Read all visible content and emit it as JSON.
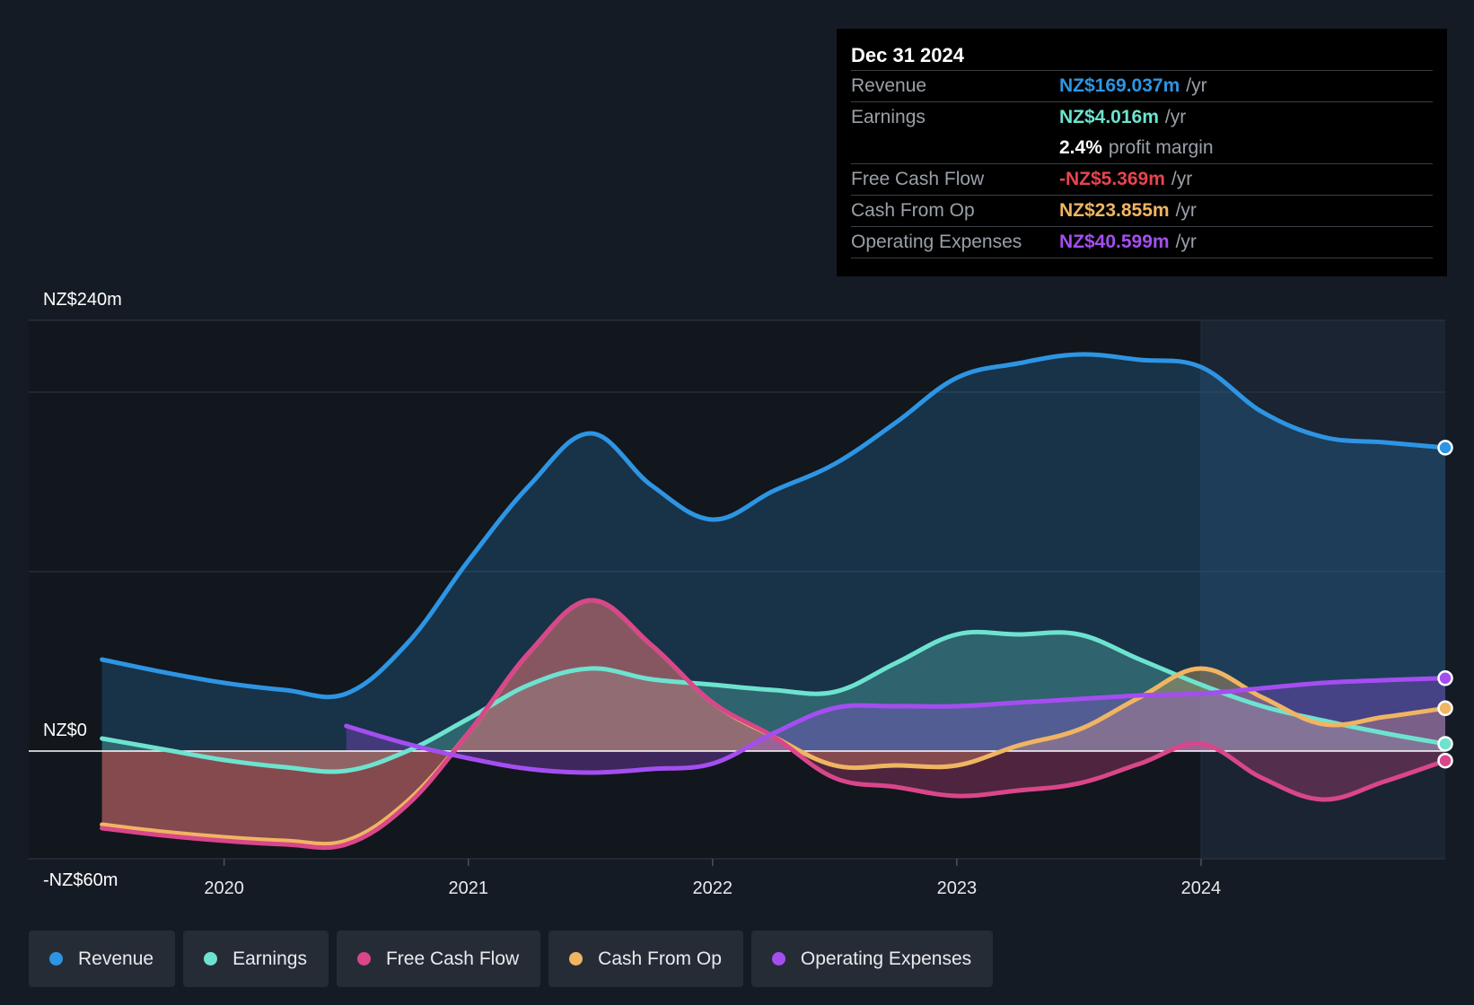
{
  "colors": {
    "revenue": "#2d95e3",
    "earnings": "#6de3cf",
    "free_cash_flow": "#d9468a",
    "cash_from_op": "#f0b562",
    "operating_expenses": "#a44ef0",
    "background": "#151b24"
  },
  "tooltip": {
    "date": "Dec 31 2024",
    "rows": [
      {
        "label": "Revenue",
        "value": "NZ$169.037m",
        "unit": "/yr",
        "color": "#2d95e3"
      },
      {
        "label": "Earnings",
        "value": "NZ$4.016m",
        "unit": "/yr",
        "color": "#6de3cf"
      },
      {
        "label": "",
        "value": "2.4%",
        "unit": "profit margin",
        "color": "#ffffff"
      },
      {
        "label": "Free Cash Flow",
        "value": "-NZ$5.369m",
        "unit": "/yr",
        "color": "#e8444f"
      },
      {
        "label": "Cash From Op",
        "value": "NZ$23.855m",
        "unit": "/yr",
        "color": "#f0b562"
      },
      {
        "label": "Operating Expenses",
        "value": "NZ$40.599m",
        "unit": "/yr",
        "color": "#a44ef0"
      }
    ]
  },
  "legend": [
    {
      "label": "Revenue",
      "color": "#2d95e3"
    },
    {
      "label": "Earnings",
      "color": "#6de3cf"
    },
    {
      "label": "Free Cash Flow",
      "color": "#d9468a"
    },
    {
      "label": "Cash From Op",
      "color": "#f0b562"
    },
    {
      "label": "Operating Expenses",
      "color": "#a44ef0"
    }
  ],
  "chart_data": {
    "type": "area",
    "title": "",
    "xlabel": "",
    "ylabel": "",
    "ylim": [
      -60,
      240
    ],
    "xlim": [
      2019.2,
      2025.0
    ],
    "y_tick_labels": [
      "NZ$240m",
      "NZ$0",
      "-NZ$60m"
    ],
    "y_ticks": [
      240,
      0,
      -60
    ],
    "y_gridlines": [
      240,
      200,
      100,
      0
    ],
    "x_tick_labels": [
      "2020",
      "2021",
      "2022",
      "2023",
      "2024"
    ],
    "x_ticks": [
      2020,
      2021,
      2022,
      2023,
      2024
    ],
    "forecast_start": 2024,
    "series": [
      {
        "name": "Revenue",
        "key": "revenue",
        "x": [
          2019.5,
          2019.75,
          2020.0,
          2020.25,
          2020.5,
          2020.75,
          2021.0,
          2021.25,
          2021.5,
          2021.75,
          2022.0,
          2022.25,
          2022.5,
          2022.75,
          2023.0,
          2023.25,
          2023.5,
          2023.75,
          2024.0,
          2024.25,
          2024.5,
          2024.75,
          2025.0
        ],
        "values": [
          51,
          44,
          38,
          34,
          32,
          60,
          106,
          148,
          177,
          148,
          129,
          145,
          160,
          183,
          208,
          216,
          221,
          218,
          214,
          189,
          175,
          172,
          169.037
        ]
      },
      {
        "name": "Earnings",
        "key": "earnings",
        "x": [
          2019.5,
          2019.75,
          2020.0,
          2020.25,
          2020.5,
          2020.75,
          2021.0,
          2021.25,
          2021.5,
          2021.75,
          2022.0,
          2022.25,
          2022.5,
          2022.75,
          2023.0,
          2023.25,
          2023.5,
          2023.75,
          2024.0,
          2024.25,
          2024.5,
          2024.75,
          2025.0
        ],
        "values": [
          7,
          1,
          -5,
          -9,
          -11,
          0,
          18,
          37,
          46,
          40,
          37,
          34,
          33,
          49,
          65,
          65,
          65,
          51,
          37,
          25,
          17,
          10,
          4.016
        ]
      },
      {
        "name": "Free Cash Flow",
        "key": "free_cash_flow",
        "x": [
          2019.5,
          2019.75,
          2020.0,
          2020.25,
          2020.5,
          2020.75,
          2021.0,
          2021.25,
          2021.5,
          2021.75,
          2022.0,
          2022.25,
          2022.5,
          2022.75,
          2023.0,
          2023.25,
          2023.5,
          2023.75,
          2024.0,
          2024.25,
          2024.5,
          2024.75,
          2025.0
        ],
        "values": [
          -43,
          -47,
          -50,
          -52,
          -52,
          -30,
          10,
          55,
          84,
          59,
          27,
          8,
          -15,
          -20,
          -25,
          -22,
          -18,
          -7,
          4,
          -15,
          -27,
          -17,
          -5.369
        ]
      },
      {
        "name": "Cash From Op",
        "key": "cash_from_op",
        "x": [
          2019.5,
          2019.75,
          2020.0,
          2020.25,
          2020.5,
          2020.75,
          2021.0,
          2021.25,
          2021.5,
          2021.75,
          2022.0,
          2022.25,
          2022.5,
          2022.75,
          2023.0,
          2023.25,
          2023.5,
          2023.75,
          2024.0,
          2024.25,
          2024.5,
          2024.75,
          2025.0
        ],
        "values": [
          -41,
          -45,
          -48,
          -50,
          -50,
          -28,
          10,
          55,
          84,
          59,
          27,
          8,
          -8,
          -8,
          -8,
          3,
          12,
          30,
          46,
          30,
          15,
          19,
          23.855
        ]
      },
      {
        "name": "Operating Expenses",
        "key": "operating_expenses",
        "x": [
          2020.5,
          2020.75,
          2021.0,
          2021.25,
          2021.5,
          2021.75,
          2022.0,
          2022.25,
          2022.5,
          2022.75,
          2023.0,
          2023.25,
          2023.5,
          2023.75,
          2024.0,
          2024.25,
          2024.5,
          2024.75,
          2025.0
        ],
        "values": [
          14,
          4,
          -4,
          -10,
          -12,
          -10,
          -7,
          10,
          24,
          25,
          25,
          27,
          29,
          31,
          32,
          35,
          38,
          39.5,
          40.599
        ]
      }
    ]
  }
}
